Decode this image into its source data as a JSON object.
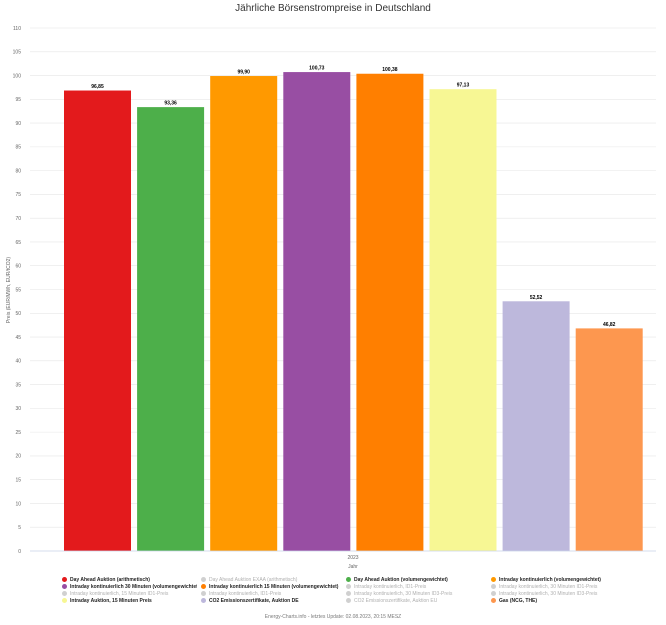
{
  "title": "Jährliche Börsenstrompreise in Deutschland",
  "footer": "Energy-Charts.info - letztes Update: 02.08.2023, 20:15 MESZ",
  "chart_data": {
    "type": "bar",
    "title": "Jährliche Börsenstrompreise in Deutschland",
    "xlabel": "Jahr",
    "ylabel": "Preis (EUR/MWh, EUR/tCO2)",
    "categories": [
      "2023"
    ],
    "ylim": [
      0,
      110
    ],
    "yticks": [
      0,
      5,
      10,
      15,
      20,
      25,
      30,
      35,
      40,
      45,
      50,
      55,
      60,
      65,
      70,
      75,
      80,
      85,
      90,
      95,
      100,
      105,
      110
    ],
    "grid": true,
    "legend_position": "bottom",
    "series": [
      {
        "name": "Day Ahead Auktion (arithmetisch)",
        "values": [
          96.85
        ],
        "label": "96,85",
        "color": "#e31a1c"
      },
      {
        "name": "Day Ahead Auktion (volumengewichtet)",
        "values": [
          93.36
        ],
        "label": "93,36",
        "color": "#4daf4a"
      },
      {
        "name": "Intraday kontinuierlich (volumengewichtet)",
        "values": [
          99.9
        ],
        "label": "99,90",
        "color": "#ff9900"
      },
      {
        "name": "Intraday kontinuierlich 30 Minuten (volumengewichtet)",
        "values": [
          100.73
        ],
        "label": "100,73",
        "color": "#984ea3"
      },
      {
        "name": "Intraday kontinuierlich 15 Minuten (volumengewichtet)",
        "values": [
          100.38
        ],
        "label": "100,38",
        "color": "#ff7f00"
      },
      {
        "name": "Intraday Auktion, 15 Minuten Preis",
        "values": [
          97.13
        ],
        "label": "97,13",
        "color": "#f7f794"
      },
      {
        "name": "CO2 Emissionszertifikate, Auktion DE",
        "values": [
          52.52
        ],
        "label": "52,52",
        "color": "#bdb8dc"
      },
      {
        "name": "Gas (NCG, THE)",
        "values": [
          46.82
        ],
        "label": "46,82",
        "color": "#fd974f"
      }
    ]
  },
  "legend": [
    {
      "label": "Day Ahead Auktion (arithmetisch)",
      "color": "#e31a1c",
      "active": true
    },
    {
      "label": "Day Ahead Auktion EXAA (arithmetisch)",
      "color": "#d0d0d0",
      "active": false
    },
    {
      "label": "Day Ahead Auktion (volumengewichtet)",
      "color": "#4daf4a",
      "active": true
    },
    {
      "label": "Intraday kontinuierlich (volumengewichtet)",
      "color": "#ff9900",
      "active": true
    },
    {
      "label": "Intraday kontinuierlich 30 Minuten (volumengewichtet)",
      "color": "#984ea3",
      "active": true
    },
    {
      "label": "Intraday kontinuierlich 15 Minuten (volumengewichtet)",
      "color": "#ff7f00",
      "active": true
    },
    {
      "label": "Intraday kontinuierlich, ID1-Preis",
      "color": "#d0d0d0",
      "active": false
    },
    {
      "label": "Intraday kontinuierlich, 30 Minuten ID1-Preis",
      "color": "#d0d0d0",
      "active": false
    },
    {
      "label": "Intraday kontinuierlich, 15 Minuten ID1-Preis",
      "color": "#d0d0d0",
      "active": false
    },
    {
      "label": "Intraday kontinuierlich, ID1-Preis",
      "color": "#d0d0d0",
      "active": false
    },
    {
      "label": "Intraday kontinuierlich, 30 Minuten ID3-Preis",
      "color": "#d0d0d0",
      "active": false
    },
    {
      "label": "Intraday kontinuierlich, 30 Minuten ID3-Preis",
      "color": "#d0d0d0",
      "active": false
    },
    {
      "label": "Intraday Auktion, 15 Minuten Preis",
      "color": "#f7f794",
      "active": true
    },
    {
      "label": "CO2 Emissionszertifikate, Auktion DE",
      "color": "#bdb8dc",
      "active": true
    },
    {
      "label": "CO2 Emissionszertifikate, Auktion EU",
      "color": "#d0d0d0",
      "active": false
    },
    {
      "label": "Gas (NCG, THE)",
      "color": "#fd974f",
      "active": true
    }
  ]
}
